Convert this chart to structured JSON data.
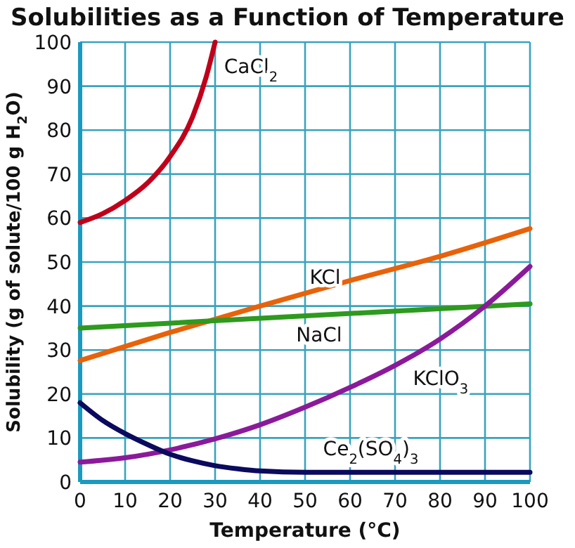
{
  "chart_data": {
    "type": "line",
    "title": "Solubilities as a Function of Temperature",
    "xlabel": "Temperature (°C)",
    "ylabel": "Solubility (g of solute/100 g H$_{2}$O)",
    "xlim": [
      0,
      100
    ],
    "ylim": [
      0,
      100
    ],
    "xticks": [
      0,
      10,
      20,
      30,
      40,
      50,
      60,
      70,
      80,
      90,
      100
    ],
    "yticks": [
      0,
      10,
      20,
      30,
      40,
      50,
      60,
      70,
      80,
      90,
      100
    ],
    "grid": true,
    "marker": "none",
    "line_style": "solid",
    "series": [
      {
        "name": "CaCl$_{2}$",
        "color": "#c0001a",
        "x": [
          0,
          5,
          10,
          15,
          20,
          25,
          28,
          30
        ],
        "values": [
          59,
          61,
          64,
          68,
          74,
          83,
          92,
          100
        ]
      },
      {
        "name": "KCl",
        "color": "#e8620a",
        "x": [
          0,
          20,
          40,
          60,
          80,
          100
        ],
        "values": [
          27.6,
          34,
          40,
          45.8,
          51.3,
          57.6
        ]
      },
      {
        "name": "NaCl",
        "color": "#2e9a1e",
        "x": [
          0,
          100
        ],
        "values": [
          35,
          40.5
        ]
      },
      {
        "name": "KClO$_{3}$",
        "color": "#8b1a9a",
        "x": [
          0,
          10,
          20,
          30,
          40,
          50,
          60,
          70,
          80,
          90,
          100
        ],
        "values": [
          4.5,
          5.5,
          7.3,
          9.8,
          13,
          17,
          21.5,
          26.5,
          32.5,
          40,
          49
        ]
      },
      {
        "name": "Ce$_{2}$(SO$_{4}$)$_{3}$",
        "color": "#0a0a5e",
        "x": [
          0,
          5,
          10,
          15,
          20,
          25,
          30,
          35,
          40,
          50,
          100
        ],
        "values": [
          18,
          14,
          11,
          8.5,
          6.3,
          4.8,
          3.7,
          3,
          2.5,
          2.2,
          2.2
        ]
      }
    ]
  }
}
